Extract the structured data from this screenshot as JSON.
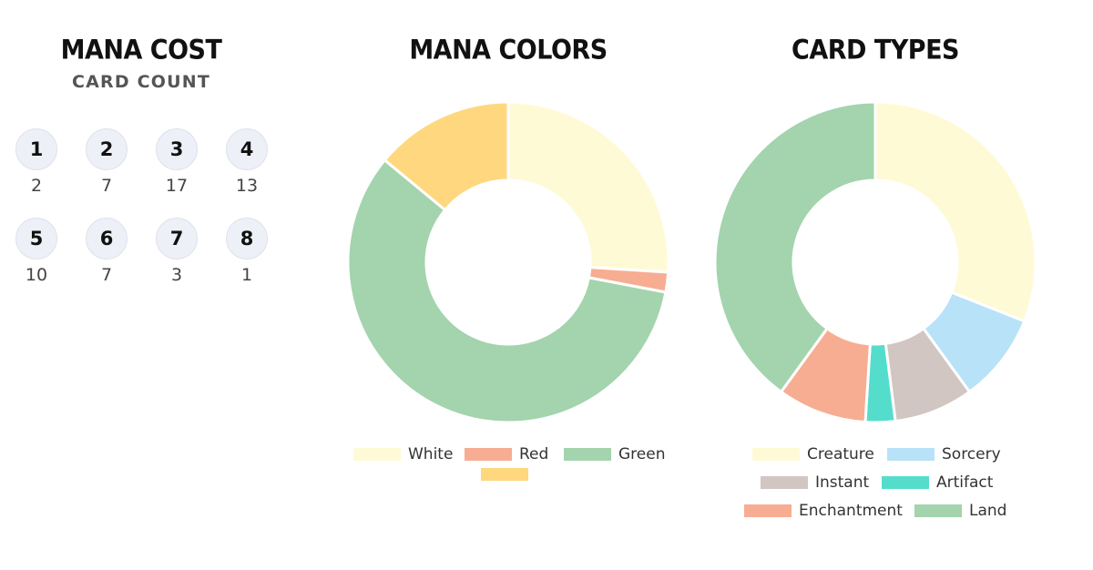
{
  "mana_cost": {
    "title": "MANA COST",
    "subtitle": "CARD COUNT",
    "items": [
      {
        "cost": "1",
        "count": "2"
      },
      {
        "cost": "2",
        "count": "7"
      },
      {
        "cost": "3",
        "count": "17"
      },
      {
        "cost": "4",
        "count": "13"
      },
      {
        "cost": "5",
        "count": "10"
      },
      {
        "cost": "6",
        "count": "7"
      },
      {
        "cost": "7",
        "count": "3"
      },
      {
        "cost": "8",
        "count": "1"
      }
    ]
  },
  "chart_data": [
    {
      "type": "pie",
      "title": "MANA COLORS",
      "donut": true,
      "categories": [
        "White",
        "Red",
        "Green",
        ""
      ],
      "values": [
        26,
        2,
        58,
        14
      ],
      "colors": [
        "#fffad6",
        "#f7ad92",
        "#a3d4ad",
        "#ffd77e"
      ],
      "legend": "bottom"
    },
    {
      "type": "pie",
      "title": "CARD TYPES",
      "donut": true,
      "categories": [
        "Creature",
        "Sorcery",
        "Instant",
        "Artifact",
        "Enchantment",
        "Land"
      ],
      "values": [
        31,
        9,
        8,
        3,
        9,
        40
      ],
      "colors": [
        "#fffad6",
        "#b8e2f8",
        "#d2c6c2",
        "#55ddcc",
        "#f7ad92",
        "#a3d4ad"
      ],
      "legend_order": [
        0,
        1,
        2,
        3,
        4,
        5
      ],
      "legend": "bottom"
    }
  ]
}
